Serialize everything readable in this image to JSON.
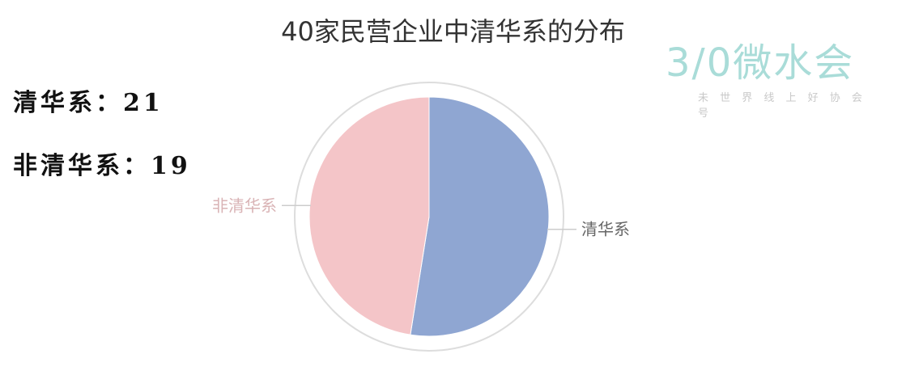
{
  "title": "40家民营企业中清华系的分布",
  "stats": [
    {
      "label": "清华系：",
      "value": "21"
    },
    {
      "label": "非清华系：",
      "value": "19"
    }
  ],
  "watermark": {
    "main": "3/0微水会",
    "sub": "未 世 界 线 上 好 协 会 号"
  },
  "colors": {
    "tsinghua": "#8fa6d2",
    "non_tsinghua": "#f4c5c8",
    "ring": "#dddddd",
    "leader": "#cccccc",
    "label_tsinghua": "#666666",
    "label_non": "#d9b3b5"
  },
  "chart_data": {
    "type": "pie",
    "title": "40家民营企业中清华系的分布",
    "slices": [
      {
        "label": "清华系",
        "value": 21
      },
      {
        "label": "非清华系",
        "value": 19
      }
    ]
  }
}
